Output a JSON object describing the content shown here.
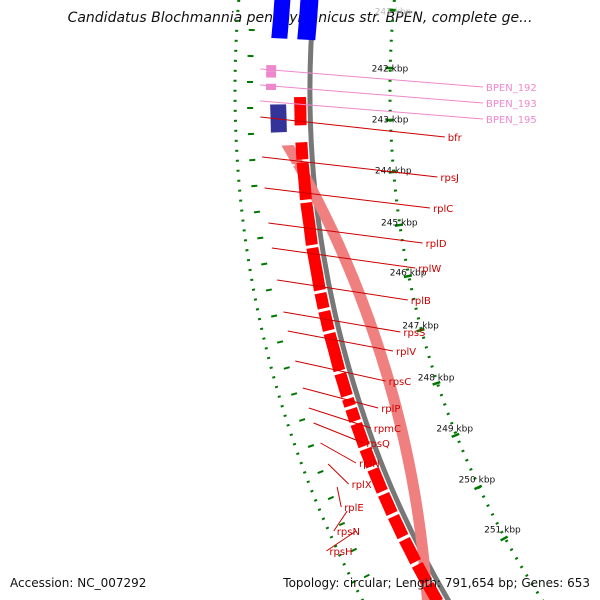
{
  "title": "Candidatus Blochmannia pennsylvanicus str. BPEN, complete ge...",
  "footer": {
    "accession": "Accession: NC_007292",
    "summary": "Topology: circular; Length: 791,654 bp; Genes: 653"
  },
  "colors": {
    "gene_forward": "#ff0000",
    "gene_reverse_band": "#f08080",
    "gene_blue": "#0000ff",
    "gene_navy": "#333399",
    "gene_pink": "#ee88cc",
    "label_red": "#cc0000",
    "label_pink": "#ee88cc",
    "tick_green": "#007700",
    "backbone": "#777777"
  },
  "scale_ticks": [
    "241 kbp",
    "242 kbp",
    "243 kbp",
    "244 kbp",
    "245 kbp",
    "246 kbp",
    "247 kbp",
    "248 kbp",
    "249 kbp",
    "250 kbp",
    "251 kbp"
  ],
  "gene_labels": [
    {
      "name": "BPEN_192",
      "color": "pink"
    },
    {
      "name": "BPEN_193",
      "color": "pink"
    },
    {
      "name": "BPEN_195",
      "color": "pink"
    },
    {
      "name": "bfr",
      "color": "red"
    },
    {
      "name": "rpsJ",
      "color": "red"
    },
    {
      "name": "rplC",
      "color": "red"
    },
    {
      "name": "rplD",
      "color": "red"
    },
    {
      "name": "rplW",
      "color": "red"
    },
    {
      "name": "rplB",
      "color": "red"
    },
    {
      "name": "rpsS",
      "color": "red"
    },
    {
      "name": "rplV",
      "color": "red"
    },
    {
      "name": "rpsC",
      "color": "red"
    },
    {
      "name": "rplP",
      "color": "red"
    },
    {
      "name": "rpmC",
      "color": "red"
    },
    {
      "name": "rpsQ",
      "color": "red"
    },
    {
      "name": "rplN",
      "color": "red"
    },
    {
      "name": "rplX",
      "color": "red"
    },
    {
      "name": "rplE",
      "color": "red"
    },
    {
      "name": "rpsN",
      "color": "red"
    },
    {
      "name": "rpsH",
      "color": "red"
    }
  ]
}
